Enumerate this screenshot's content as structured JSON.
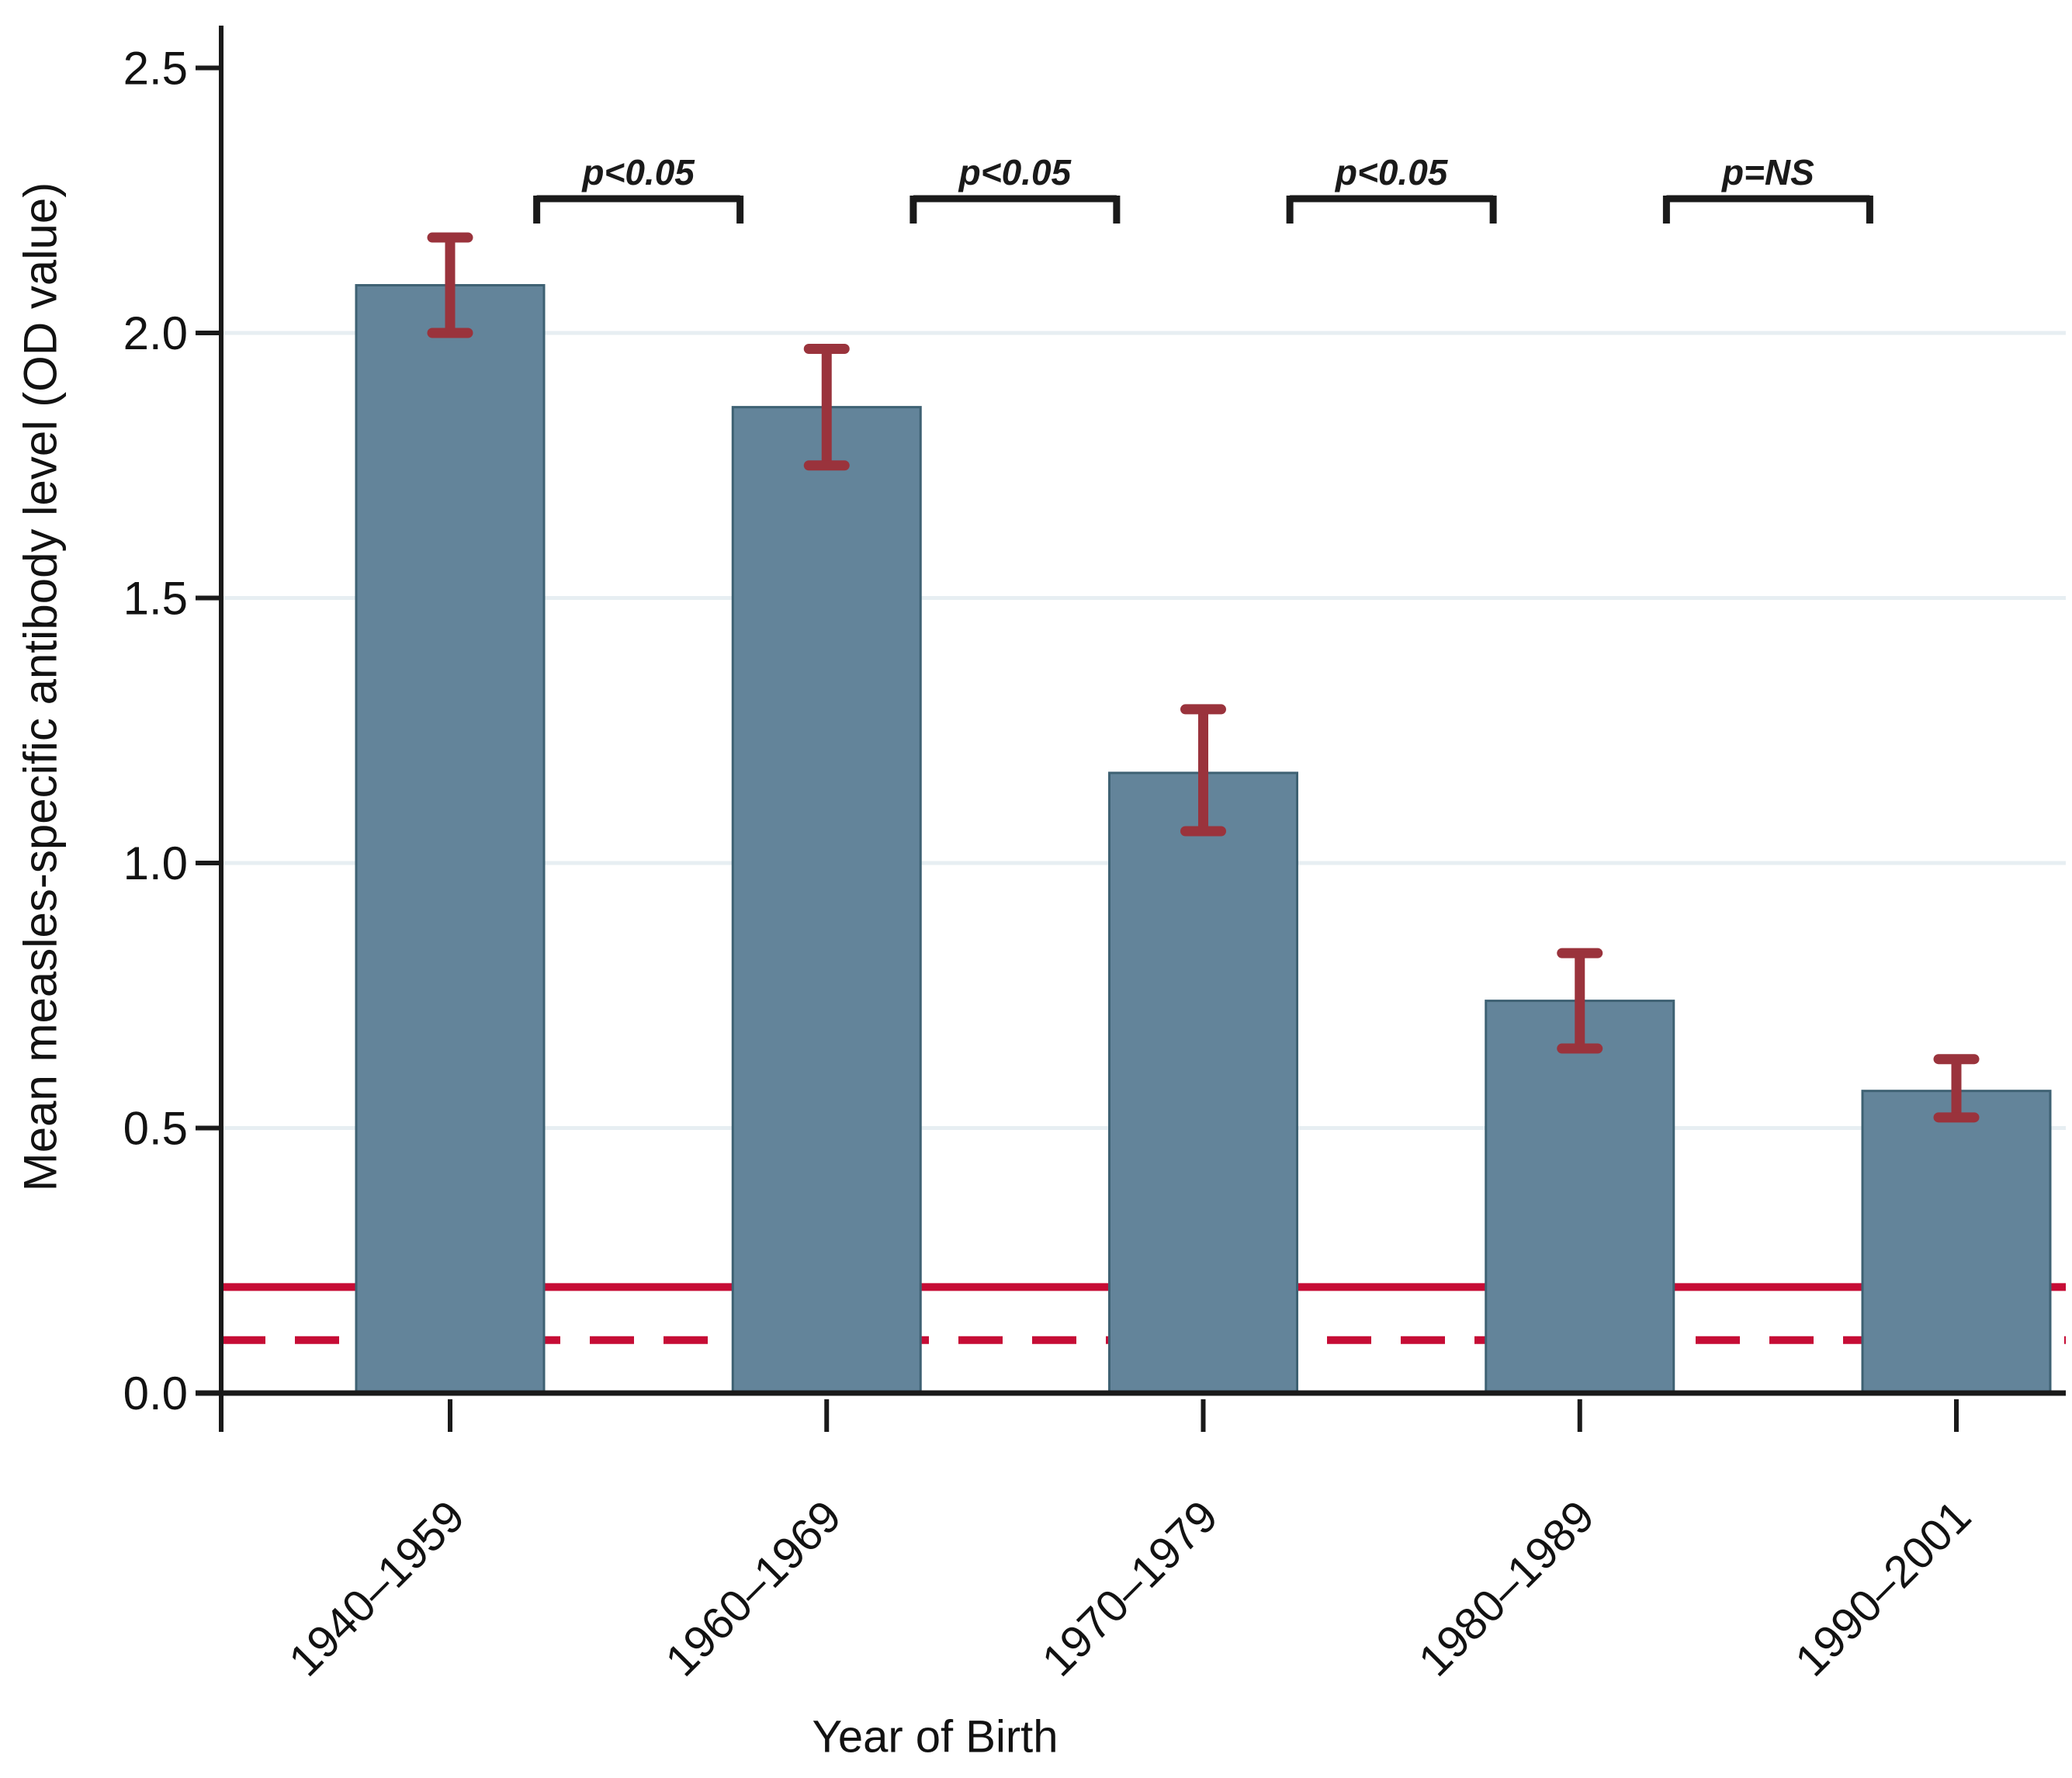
{
  "figure": {
    "background_color": "#ffffff"
  },
  "chart_data": {
    "type": "bar",
    "title": "",
    "xlabel": "Year of Birth",
    "ylabel": "Mean measles-specific antibody level (OD value)",
    "categories": [
      "1940–1959",
      "1960–1969",
      "1970–1979",
      "1980–1989",
      "1990–2001"
    ],
    "values": [
      2.09,
      1.86,
      1.17,
      0.74,
      0.57
    ],
    "error_low": [
      2.0,
      1.75,
      1.06,
      0.65,
      0.52
    ],
    "error_high": [
      2.18,
      1.97,
      1.29,
      0.83,
      0.63
    ],
    "ylim": [
      0,
      2.5
    ],
    "yticks": [
      {
        "value": 0.0,
        "label": "0.0"
      },
      {
        "value": 0.5,
        "label": "0.5"
      },
      {
        "value": 1.0,
        "label": "1.0"
      },
      {
        "value": 1.5,
        "label": "1.5"
      },
      {
        "value": 2.0,
        "label": "2.0"
      },
      {
        "value": 2.5,
        "label": "2.5"
      }
    ],
    "gridline_values": [
      0.5,
      1.0,
      1.5,
      2.0
    ],
    "grid": "horizontal",
    "legend": "none",
    "reference_lines": [
      {
        "value": 0.2,
        "style": "solid",
        "color": "#c60c35"
      },
      {
        "value": 0.1,
        "style": "dashed",
        "color": "#c60c35"
      }
    ],
    "significance_brackets": [
      {
        "between": [
          0,
          1
        ],
        "label": "p<0.05"
      },
      {
        "between": [
          1,
          2
        ],
        "label": "p<0.05"
      },
      {
        "between": [
          2,
          3
        ],
        "label": "p<0.05"
      },
      {
        "between": [
          3,
          4
        ],
        "label": "p=NS"
      }
    ],
    "colors": {
      "bar_fill": "#63849a",
      "bar_border": "#3e6173",
      "error_bar": "#9a333c",
      "reference_line": "#c60c35",
      "gridline": "#e7eef2",
      "axis": "#1a1a1a",
      "text": "#121212"
    }
  }
}
